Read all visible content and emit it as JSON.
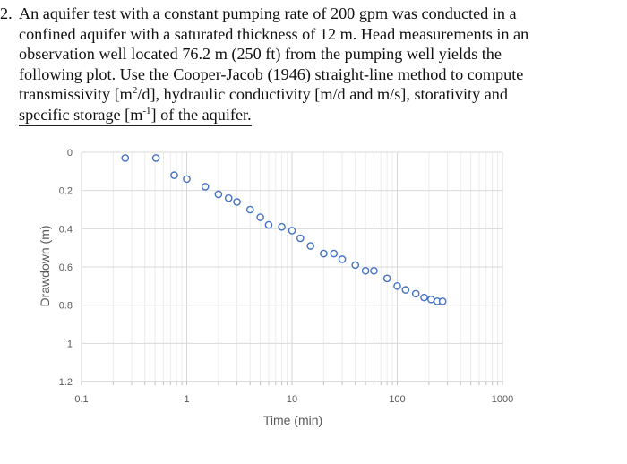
{
  "problem": {
    "number": "2.",
    "lines": [
      "An aquifer test with a constant pumping rate of 200 gpm was conducted in a",
      "confined aquifer with a saturated thickness of 12 m. Head measurements in an",
      "observation well located 76.2 m (250 ft) from the pumping well yields the",
      "following plot. Use the Cooper-Jacob (1946) straight-line method to compute"
    ],
    "line5_pre": "transmissivity [m",
    "line5_sup1": "2",
    "line5_post": "/d], hydraulic conductivity [m/d and m/s], storativity and",
    "line6_pre": "specific storage [m",
    "line6_sup": "-1",
    "line6_post": "] of the aquifer."
  },
  "chart_data": {
    "type": "scatter",
    "xlabel": "Time (min)",
    "ylabel": "Drawdown (m)",
    "x_scale": "log",
    "xlim": [
      0.1,
      1000
    ],
    "ylim": [
      0,
      1.2
    ],
    "y_inverted": true,
    "x_ticks": [
      "0.1",
      "1",
      "10",
      "100",
      "1000"
    ],
    "y_ticks": [
      "0",
      "0.2",
      "0.4",
      "0.6",
      "0.8",
      "1",
      "1.2"
    ],
    "grid": true,
    "marker": "open-circle",
    "marker_color": "#4472C4",
    "points": [
      {
        "t": 0.26,
        "s": 0.03
      },
      {
        "t": 0.51,
        "s": 0.03
      },
      {
        "t": 0.76,
        "s": 0.12
      },
      {
        "t": 1.0,
        "s": 0.14
      },
      {
        "t": 1.5,
        "s": 0.18
      },
      {
        "t": 2.0,
        "s": 0.22
      },
      {
        "t": 2.5,
        "s": 0.24
      },
      {
        "t": 3.0,
        "s": 0.26
      },
      {
        "t": 4.0,
        "s": 0.3
      },
      {
        "t": 5.0,
        "s": 0.34
      },
      {
        "t": 6.0,
        "s": 0.38
      },
      {
        "t": 8.0,
        "s": 0.39
      },
      {
        "t": 10.0,
        "s": 0.41
      },
      {
        "t": 12.0,
        "s": 0.45
      },
      {
        "t": 15.0,
        "s": 0.49
      },
      {
        "t": 20.0,
        "s": 0.53
      },
      {
        "t": 25.0,
        "s": 0.53
      },
      {
        "t": 30.0,
        "s": 0.56
      },
      {
        "t": 40.0,
        "s": 0.59
      },
      {
        "t": 50.0,
        "s": 0.62
      },
      {
        "t": 60.0,
        "s": 0.62
      },
      {
        "t": 80.0,
        "s": 0.66
      },
      {
        "t": 100.0,
        "s": 0.7
      },
      {
        "t": 120.0,
        "s": 0.72
      },
      {
        "t": 150.0,
        "s": 0.74
      },
      {
        "t": 180.0,
        "s": 0.76
      },
      {
        "t": 210.0,
        "s": 0.77
      },
      {
        "t": 240.0,
        "s": 0.78
      },
      {
        "t": 270.0,
        "s": 0.78
      }
    ]
  }
}
